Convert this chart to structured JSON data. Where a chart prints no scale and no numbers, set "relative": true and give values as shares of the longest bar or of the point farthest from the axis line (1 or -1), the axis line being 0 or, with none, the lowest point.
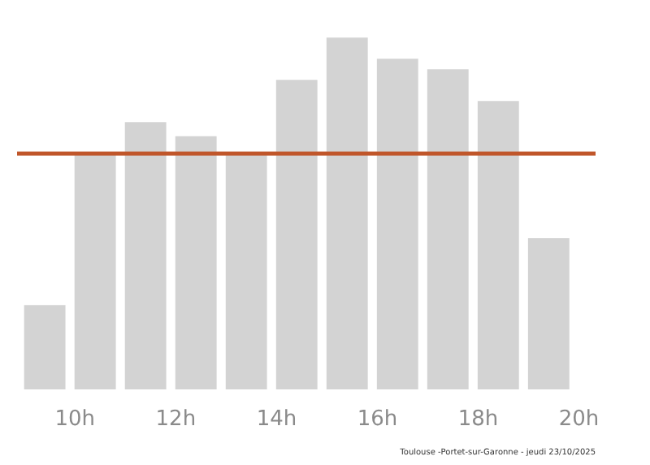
{
  "chart_data": {
    "type": "bar",
    "relative": true,
    "x": [
      9.4,
      10.4,
      11.4,
      12.4,
      13.4,
      14.4,
      15.4,
      16.4,
      17.4,
      18.4,
      19.4
    ],
    "values": [
      0.24,
      0.67,
      0.76,
      0.72,
      0.67,
      0.88,
      1,
      0.94,
      0.91,
      0.82,
      0.43
    ],
    "color": "#d3d3d3",
    "xlim": [
      8.85,
      20.33
    ],
    "xticks": [
      {
        "value": 10,
        "label": "10h"
      },
      {
        "value": 12,
        "label": "12h"
      },
      {
        "value": 14,
        "label": "14h"
      },
      {
        "value": 16,
        "label": "16h"
      },
      {
        "value": 18,
        "label": "18h"
      },
      {
        "value": 20,
        "label": "20h"
      }
    ],
    "ref_lines": [
      {
        "axis": "y",
        "value": 0.67,
        "label": null,
        "color": "#c0562a"
      }
    ],
    "annotations": [
      "Toulouse -Portet-sur-Garonne - jeudi 23/10/2025"
    ],
    "grid": false
  }
}
